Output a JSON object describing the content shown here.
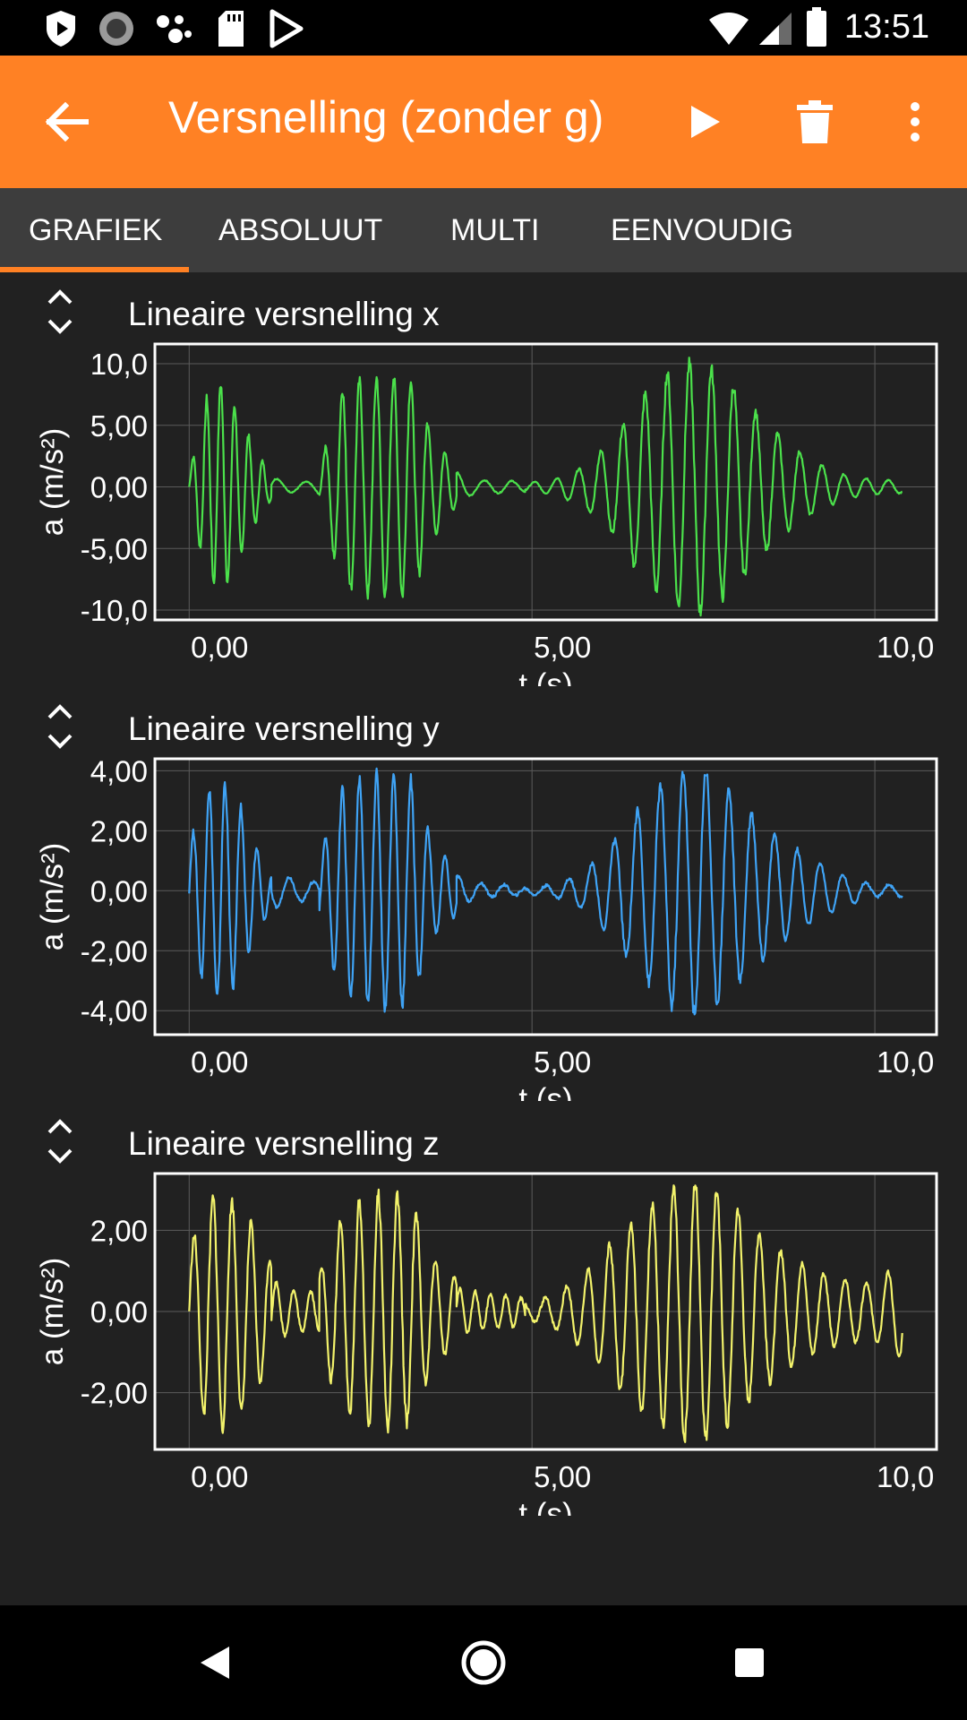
{
  "status_bar": {
    "time": "13:51",
    "left_icons": [
      "shield-notification-icon",
      "sync-circle-icon",
      "assistant-dots-icon",
      "sd-card-icon",
      "play-store-icon"
    ],
    "right_icons": [
      "wifi-icon",
      "cell-signal-icon",
      "battery-icon"
    ]
  },
  "app_bar": {
    "title": "Versnelling (zonder g)",
    "background_color": "#ff8124",
    "icons": [
      "back-arrow-icon",
      "play-icon",
      "delete-icon",
      "overflow-menu-icon"
    ]
  },
  "tabs": [
    {
      "label": "GRAFIEK",
      "selected": true
    },
    {
      "label": "ABSOLUUT",
      "selected": false
    },
    {
      "label": "MULTI",
      "selected": false
    },
    {
      "label": "EENVOUDIG",
      "selected": false
    }
  ],
  "chart_data": [
    {
      "type": "line",
      "title": "Lineaire versnelling x",
      "xlabel": "t (s)",
      "ylabel": "a (m/s²)",
      "xlim": [
        -0.5,
        10.9
      ],
      "ylim": [
        -10.8,
        11.6
      ],
      "xticks": [
        0,
        5,
        10
      ],
      "xtick_labels": [
        "0,00",
        "5,00",
        "10,0"
      ],
      "yticks": [
        10,
        5,
        0,
        -5,
        -10
      ],
      "ytick_labels": [
        "10,0",
        "5,00",
        "0,00",
        "-5,00",
        "-10,0"
      ],
      "grid": true,
      "color": "#4be14b",
      "series": [
        {
          "segments": [
            {
              "t0": 0.0,
              "t1": 1.2,
              "freq": 4.9,
              "amp": [
                1,
                7,
                8.5,
                6,
                3,
                1
              ]
            },
            {
              "t0": 1.2,
              "t1": 1.9,
              "freq": 2.4,
              "amp": [
                0.8,
                0.5,
                0.4,
                0.4,
                0.6
              ]
            },
            {
              "t0": 1.9,
              "t1": 3.9,
              "freq": 4.0,
              "amp": [
                1.5,
                8,
                8.7,
                9,
                8.7,
                4,
                1.5
              ]
            },
            {
              "t0": 3.9,
              "t1": 4.9,
              "freq": 2.5,
              "amp": [
                1.2,
                0.6,
                0.5,
                0.5,
                0.4
              ]
            },
            {
              "t0": 4.9,
              "t1": 10.4,
              "freq": 3.1,
              "amp": [
                0.3,
                0.6,
                1.6,
                3.7,
                7.2,
                9.4,
                10.2,
                8.6,
                6.0,
                3.6,
                2.0,
                1.0,
                0.6,
                0.5
              ]
            }
          ]
        }
      ]
    },
    {
      "type": "line",
      "title": "Lineaire versnelling y",
      "xlabel": "t (s)",
      "ylabel": "a (m/s²)",
      "xlim": [
        -0.5,
        10.9
      ],
      "ylim": [
        -4.8,
        4.4
      ],
      "xticks": [
        0,
        5,
        10
      ],
      "xtick_labels": [
        "0,00",
        "5,00",
        "10,0"
      ],
      "yticks": [
        4,
        2,
        0,
        -2,
        -4
      ],
      "ytick_labels": [
        "4,00",
        "2,00",
        "0,00",
        "-2,00",
        "-4,00"
      ],
      "grid": true,
      "color": "#3fa3f5",
      "series": [
        {
          "segments": [
            {
              "t0": 0.0,
              "t1": 1.2,
              "freq": 4.3,
              "amp": [
                1.5,
                3.3,
                3.7,
                3.0,
                1.5,
                0.6
              ]
            },
            {
              "t0": 1.2,
              "t1": 1.9,
              "freq": 2.8,
              "amp": [
                0.6,
                0.5,
                0.4,
                0.3,
                0.3
              ]
            },
            {
              "t0": 1.9,
              "t1": 3.9,
              "freq": 4.0,
              "amp": [
                1.2,
                3.4,
                3.8,
                3.9,
                3.7,
                1.5,
                0.8
              ]
            },
            {
              "t0": 3.9,
              "t1": 4.9,
              "freq": 3.0,
              "amp": [
                0.5,
                0.3,
                0.2,
                0.2,
                0.1
              ]
            },
            {
              "t0": 4.9,
              "t1": 10.4,
              "freq": 3.0,
              "amp": [
                0.1,
                0.2,
                0.6,
                1.6,
                2.8,
                3.8,
                4.2,
                3.4,
                2.4,
                1.6,
                1.0,
                0.5,
                0.2,
                0.2
              ]
            }
          ]
        }
      ]
    },
    {
      "type": "line",
      "title": "Lineaire versnelling z",
      "xlabel": "t (s)",
      "ylabel": "a (m/s²)",
      "xlim": [
        -0.5,
        10.9
      ],
      "ylim": [
        -3.4,
        3.4
      ],
      "xticks": [
        0,
        5,
        10
      ],
      "xtick_labels": [
        "0,00",
        "5,00",
        "10,0"
      ],
      "yticks": [
        2,
        0,
        -2
      ],
      "ytick_labels": [
        "2,00",
        "0,00",
        "-2,00"
      ],
      "grid": true,
      "color": "#f2f26b",
      "series": [
        {
          "segments": [
            {
              "t0": 0.0,
              "t1": 1.2,
              "freq": 3.6,
              "amp": [
                1.5,
                2.7,
                2.9,
                2.6,
                2.0,
                1.2
              ]
            },
            {
              "t0": 1.2,
              "t1": 1.9,
              "freq": 4.0,
              "amp": [
                0.8,
                0.6,
                0.5,
                0.5,
                0.5
              ]
            },
            {
              "t0": 1.9,
              "t1": 3.9,
              "freq": 3.6,
              "amp": [
                1.0,
                2.4,
                2.8,
                2.9,
                2.7,
                1.3,
                0.8
              ]
            },
            {
              "t0": 3.9,
              "t1": 4.9,
              "freq": 4.5,
              "amp": [
                0.6,
                0.5,
                0.4,
                0.4,
                0.3
              ]
            },
            {
              "t0": 4.9,
              "t1": 10.4,
              "freq": 3.2,
              "amp": [
                0.2,
                0.4,
                0.9,
                1.7,
                2.5,
                3.0,
                3.2,
                2.8,
                2.0,
                1.4,
                1.0,
                0.8,
                0.7,
                1.2
              ]
            }
          ]
        }
      ]
    }
  ],
  "nav_bar": {
    "icons": [
      "back-triangle-icon",
      "home-circle-icon",
      "recents-square-icon"
    ]
  }
}
